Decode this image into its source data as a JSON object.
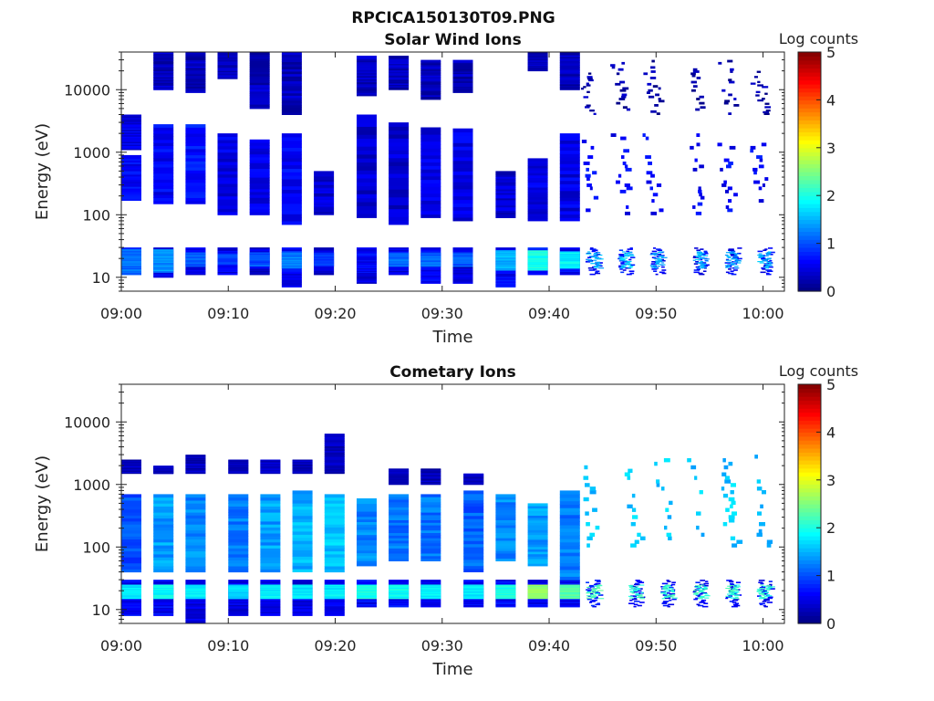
{
  "figure_title": "RPCICA150130T09.PNG",
  "chart_data": [
    {
      "type": "heatmap",
      "title": "Solar Wind Ions",
      "xlabel": "Time",
      "ylabel": "Energy (eV)",
      "x_range": [
        "09:00",
        "10:02"
      ],
      "x_ticks": [
        "09:00",
        "09:10",
        "09:20",
        "09:30",
        "09:40",
        "09:50",
        "10:00"
      ],
      "y_scale": "log",
      "y_range": [
        6,
        40000
      ],
      "y_ticks": [
        "10",
        "100",
        "1000",
        "10000"
      ],
      "colorbar": {
        "label": "Log counts",
        "range": [
          0,
          5
        ],
        "ticks": [
          "0",
          "1",
          "2",
          "3",
          "4",
          "5"
        ],
        "colormap": "jet"
      },
      "sweep_columns": [
        {
          "t": "09:00",
          "bands": [
            [
              11,
              30,
              0.9
            ],
            [
              12,
              28,
              1.2
            ],
            [
              170,
              900,
              0.6
            ],
            [
              1100,
              4000,
              0.5
            ]
          ]
        },
        {
          "t": "09:03",
          "bands": [
            [
              10,
              30,
              0.6
            ],
            [
              12,
              28,
              1.3
            ],
            [
              150,
              2800,
              0.6
            ],
            [
              10000,
              40000,
              0.3
            ]
          ]
        },
        {
          "t": "09:06",
          "bands": [
            [
              11,
              30,
              0.5
            ],
            [
              15,
              25,
              1.1
            ],
            [
              150,
              2800,
              0.7
            ],
            [
              9000,
              40000,
              0.3
            ]
          ]
        },
        {
          "t": "09:09",
          "bands": [
            [
              11,
              30,
              0.5
            ],
            [
              16,
              24,
              1.0
            ],
            [
              100,
              2000,
              0.5
            ],
            [
              15000,
              40000,
              0.3
            ]
          ]
        },
        {
          "t": "09:12",
          "bands": [
            [
              11,
              30,
              0.4
            ],
            [
              15,
              25,
              1.0
            ],
            [
              100,
              1600,
              0.5
            ],
            [
              5000,
              40000,
              0.3
            ]
          ]
        },
        {
          "t": "09:15",
          "bands": [
            [
              7,
              30,
              0.6
            ],
            [
              14,
              26,
              1.2
            ],
            [
              70,
              2000,
              0.6
            ],
            [
              4000,
              40000,
              0.3
            ]
          ]
        },
        {
          "t": "09:18",
          "bands": [
            [
              11,
              30,
              0.4
            ],
            [
              15,
              25,
              0.9
            ],
            [
              100,
              500,
              0.4
            ]
          ]
        },
        {
          "t": "09:22",
          "bands": [
            [
              8,
              30,
              0.4
            ],
            [
              12,
              28,
              0.6
            ],
            [
              90,
              4000,
              0.4
            ],
            [
              8000,
              35000,
              0.3
            ]
          ]
        },
        {
          "t": "09:25",
          "bands": [
            [
              11,
              30,
              0.5
            ],
            [
              15,
              25,
              1.1
            ],
            [
              70,
              3000,
              0.4
            ],
            [
              10000,
              35000,
              0.3
            ]
          ]
        },
        {
          "t": "09:28",
          "bands": [
            [
              8,
              30,
              0.6
            ],
            [
              15,
              25,
              1.2
            ],
            [
              90,
              2500,
              0.5
            ],
            [
              7000,
              30000,
              0.3
            ]
          ]
        },
        {
          "t": "09:31",
          "bands": [
            [
              8,
              30,
              0.4
            ],
            [
              15,
              25,
              1.1
            ],
            [
              80,
              2400,
              0.5
            ],
            [
              9000,
              30000,
              0.3
            ]
          ]
        },
        {
          "t": "09:35",
          "bands": [
            [
              7,
              30,
              0.6
            ],
            [
              13,
              27,
              1.5
            ],
            [
              90,
              500,
              0.4
            ]
          ]
        },
        {
          "t": "09:38",
          "bands": [
            [
              11,
              30,
              0.7
            ],
            [
              13,
              27,
              2.0
            ],
            [
              80,
              800,
              0.5
            ],
            [
              20000,
              40000,
              0.3
            ]
          ]
        },
        {
          "t": "09:41",
          "bands": [
            [
              11,
              30,
              0.6
            ],
            [
              14,
              26,
              1.8
            ],
            [
              80,
              2000,
              0.5
            ],
            [
              10000,
              40000,
              0.3
            ]
          ]
        },
        {
          "t": "09:44",
          "bands": [
            [
              11,
              30,
              0.6
            ],
            [
              14,
              26,
              1.5
            ],
            [
              100,
              2000,
              0.6
            ],
            [
              4000,
              20000,
              0.2
            ]
          ]
        },
        {
          "t": "09:47",
          "bands": [
            [
              11,
              30,
              0.7
            ],
            [
              14,
              26,
              1.6
            ],
            [
              100,
              2000,
              0.6
            ],
            [
              4000,
              30000,
              0.2
            ]
          ]
        },
        {
          "t": "09:50",
          "bands": [
            [
              11,
              30,
              0.6
            ],
            [
              14,
              26,
              1.5
            ],
            [
              100,
              2000,
              0.6
            ],
            [
              4000,
              30000,
              0.2
            ]
          ]
        },
        {
          "t": "09:54",
          "bands": [
            [
              11,
              30,
              0.6
            ],
            [
              14,
              26,
              1.5
            ],
            [
              100,
              2000,
              0.6
            ],
            [
              4000,
              30000,
              0.2
            ]
          ]
        },
        {
          "t": "09:57",
          "bands": [
            [
              11,
              30,
              0.6
            ],
            [
              14,
              26,
              1.5
            ],
            [
              100,
              2000,
              0.6
            ],
            [
              4000,
              30000,
              0.2
            ]
          ]
        },
        {
          "t": "10:00",
          "bands": [
            [
              11,
              30,
              0.6
            ],
            [
              14,
              26,
              1.5
            ],
            [
              100,
              2000,
              0.6
            ],
            [
              4000,
              20000,
              0.2
            ]
          ]
        }
      ]
    },
    {
      "type": "heatmap",
      "title": "Cometary Ions",
      "xlabel": "Time",
      "ylabel": "Energy (eV)",
      "x_range": [
        "09:00",
        "10:02"
      ],
      "x_ticks": [
        "09:00",
        "09:10",
        "09:20",
        "09:30",
        "09:40",
        "09:50",
        "10:00"
      ],
      "y_scale": "log",
      "y_range": [
        6,
        40000
      ],
      "y_ticks": [
        "10",
        "100",
        "1000",
        "10000"
      ],
      "colorbar": {
        "label": "Log counts",
        "range": [
          0,
          5
        ],
        "ticks": [
          "0",
          "1",
          "2",
          "3",
          "4",
          "5"
        ],
        "colormap": "jet"
      },
      "sweep_columns": [
        {
          "t": "09:00",
          "bands": [
            [
              8,
              30,
              0.6
            ],
            [
              15,
              25,
              1.8
            ],
            [
              40,
              700,
              1.0
            ],
            [
              1500,
              2500,
              0.3
            ]
          ]
        },
        {
          "t": "09:03",
          "bands": [
            [
              8,
              30,
              0.6
            ],
            [
              15,
              25,
              1.9
            ],
            [
              40,
              700,
              1.4
            ],
            [
              1500,
              2000,
              0.3
            ]
          ]
        },
        {
          "t": "09:06",
          "bands": [
            [
              6,
              30,
              0.5
            ],
            [
              15,
              25,
              1.8
            ],
            [
              40,
              700,
              1.3
            ],
            [
              1500,
              3000,
              0.3
            ]
          ]
        },
        {
          "t": "09:10",
          "bands": [
            [
              8,
              30,
              0.5
            ],
            [
              15,
              25,
              1.7
            ],
            [
              40,
              700,
              1.2
            ],
            [
              1500,
              2500,
              0.3
            ]
          ]
        },
        {
          "t": "09:13",
          "bands": [
            [
              8,
              30,
              0.5
            ],
            [
              15,
              25,
              1.8
            ],
            [
              40,
              700,
              1.4
            ],
            [
              1500,
              2500,
              0.3
            ]
          ]
        },
        {
          "t": "09:16",
          "bands": [
            [
              8,
              30,
              0.5
            ],
            [
              15,
              25,
              1.8
            ],
            [
              40,
              800,
              1.5
            ],
            [
              1500,
              2500,
              0.3
            ]
          ]
        },
        {
          "t": "09:19",
          "bands": [
            [
              8,
              30,
              0.5
            ],
            [
              15,
              25,
              1.8
            ],
            [
              40,
              700,
              1.6
            ],
            [
              1500,
              6500,
              0.3
            ]
          ]
        },
        {
          "t": "09:22",
          "bands": [
            [
              11,
              30,
              0.6
            ],
            [
              15,
              25,
              2.0
            ],
            [
              50,
              600,
              1.3
            ]
          ]
        },
        {
          "t": "09:25",
          "bands": [
            [
              11,
              30,
              0.6
            ],
            [
              15,
              25,
              1.9
            ],
            [
              60,
              700,
              1.2
            ],
            [
              1000,
              1800,
              0.3
            ]
          ]
        },
        {
          "t": "09:28",
          "bands": [
            [
              11,
              30,
              0.6
            ],
            [
              15,
              25,
              1.8
            ],
            [
              60,
              700,
              1.2
            ],
            [
              1000,
              1800,
              0.3
            ]
          ]
        },
        {
          "t": "09:32",
          "bands": [
            [
              11,
              30,
              0.6
            ],
            [
              15,
              25,
              1.8
            ],
            [
              40,
              800,
              1.1
            ],
            [
              1000,
              1500,
              0.3
            ]
          ]
        },
        {
          "t": "09:35",
          "bands": [
            [
              11,
              30,
              0.6
            ],
            [
              15,
              25,
              2.0
            ],
            [
              60,
              700,
              1.3
            ]
          ]
        },
        {
          "t": "09:38",
          "bands": [
            [
              11,
              30,
              0.6
            ],
            [
              15,
              25,
              2.6
            ],
            [
              50,
              500,
              1.4
            ]
          ]
        },
        {
          "t": "09:41",
          "bands": [
            [
              11,
              30,
              0.6
            ],
            [
              15,
              25,
              2.3
            ],
            [
              30,
              800,
              1.2
            ]
          ]
        },
        {
          "t": "09:44",
          "bands": [
            [
              11,
              30,
              0.7
            ],
            [
              15,
              25,
              2.2
            ],
            [
              100,
              3000,
              1.6
            ]
          ]
        },
        {
          "t": "09:48",
          "bands": [
            [
              11,
              30,
              0.6
            ],
            [
              15,
              25,
              2.1
            ],
            [
              100,
              3000,
              1.6
            ]
          ]
        },
        {
          "t": "09:51",
          "bands": [
            [
              11,
              30,
              0.6
            ],
            [
              15,
              25,
              2.1
            ],
            [
              100,
              3000,
              1.6
            ]
          ]
        },
        {
          "t": "09:54",
          "bands": [
            [
              11,
              30,
              0.6
            ],
            [
              15,
              25,
              2.1
            ],
            [
              100,
              3000,
              1.6
            ]
          ]
        },
        {
          "t": "09:57",
          "bands": [
            [
              11,
              30,
              0.6
            ],
            [
              15,
              25,
              2.1
            ],
            [
              100,
              3000,
              1.6
            ]
          ]
        },
        {
          "t": "10:00",
          "bands": [
            [
              11,
              30,
              0.6
            ],
            [
              15,
              25,
              2.1
            ],
            [
              100,
              3000,
              1.5
            ]
          ]
        }
      ]
    }
  ]
}
